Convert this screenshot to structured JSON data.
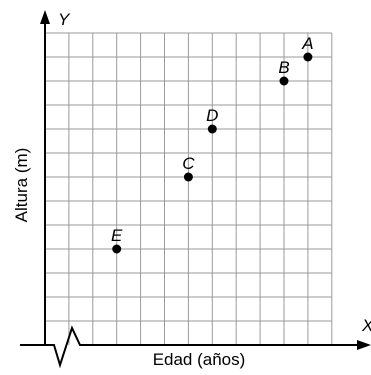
{
  "chart_data": {
    "type": "scatter",
    "title": "",
    "xlabel": "Edad (años)",
    "ylabel": "Altura (m)",
    "x_axis_letter": "X",
    "y_axis_letter": "Y",
    "grid": true,
    "x_tick_labels": [],
    "y_tick_labels": [],
    "points": [
      {
        "label": "A",
        "x": 11,
        "y": 12
      },
      {
        "label": "B",
        "x": 10,
        "y": 11
      },
      {
        "label": "D",
        "x": 7,
        "y": 9
      },
      {
        "label": "C",
        "x": 6,
        "y": 7
      },
      {
        "label": "E",
        "x": 3,
        "y": 4
      }
    ],
    "grid_cells_x": 12,
    "grid_cells_y": 13,
    "axis_break_x": true
  }
}
